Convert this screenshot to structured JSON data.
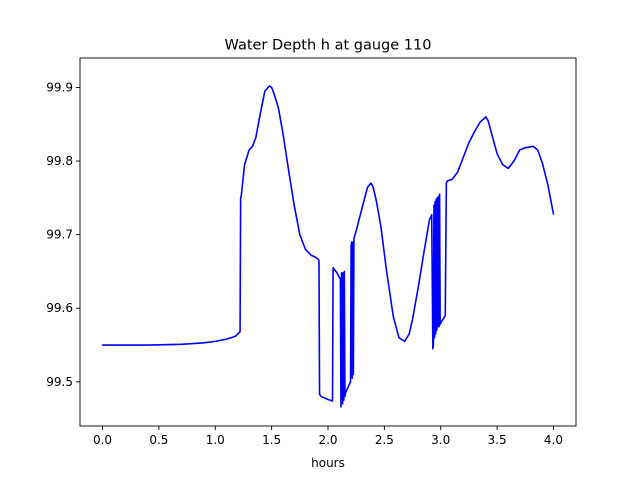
{
  "chart_data": {
    "type": "line",
    "title": "Water Depth h at gauge 110",
    "xlabel": "hours",
    "ylabel": "",
    "xlim": [
      -0.2,
      4.2
    ],
    "ylim": [
      99.44,
      99.94
    ],
    "xticks": [
      0.0,
      0.5,
      1.0,
      1.5,
      2.0,
      2.5,
      3.0,
      3.5,
      4.0
    ],
    "xtick_labels": [
      "0.0",
      "0.5",
      "1.0",
      "1.5",
      "2.0",
      "2.5",
      "3.0",
      "3.5",
      "4.0"
    ],
    "yticks": [
      99.5,
      99.6,
      99.7,
      99.8,
      99.9
    ],
    "ytick_labels": [
      "99.5",
      "99.6",
      "99.7",
      "99.8",
      "99.9"
    ],
    "grid": false,
    "line_color": "#0000ff",
    "series": [
      {
        "name": "",
        "x": [
          0.0,
          0.4,
          0.7,
          0.9,
          1.0,
          1.1,
          1.18,
          1.22,
          1.225,
          1.23,
          1.26,
          1.3,
          1.33,
          1.36,
          1.4,
          1.44,
          1.48,
          1.5,
          1.52,
          1.56,
          1.6,
          1.65,
          1.7,
          1.75,
          1.8,
          1.85,
          1.88,
          1.91,
          1.92,
          1.925,
          1.94,
          2.0,
          2.04,
          2.045,
          2.06,
          2.08,
          2.1,
          2.11,
          2.115,
          2.12,
          2.125,
          2.13,
          2.135,
          2.14,
          2.145,
          2.15,
          2.155,
          2.17,
          2.2,
          2.205,
          2.21,
          2.215,
          2.22,
          2.225,
          2.23,
          2.25,
          2.3,
          2.35,
          2.38,
          2.4,
          2.43,
          2.47,
          2.52,
          2.58,
          2.63,
          2.68,
          2.72,
          2.75,
          2.8,
          2.85,
          2.9,
          2.92,
          2.93,
          2.935,
          2.94,
          2.945,
          2.95,
          2.955,
          2.96,
          2.965,
          2.97,
          2.975,
          2.98,
          2.985,
          2.99,
          2.995,
          3.0,
          3.02,
          3.04,
          3.05,
          3.055,
          3.06,
          3.1,
          3.15,
          3.2,
          3.25,
          3.3,
          3.35,
          3.4,
          3.42,
          3.45,
          3.5,
          3.55,
          3.6,
          3.65,
          3.7,
          3.75,
          3.82,
          3.86,
          3.9,
          3.95,
          4.0
        ],
        "y": [
          99.55,
          99.55,
          99.551,
          99.553,
          99.555,
          99.558,
          99.562,
          99.568,
          99.75,
          99.752,
          99.795,
          99.815,
          99.82,
          99.832,
          99.865,
          99.895,
          99.902,
          99.9,
          99.892,
          99.872,
          99.838,
          99.788,
          99.74,
          99.7,
          99.68,
          99.672,
          99.67,
          99.667,
          99.665,
          99.483,
          99.48,
          99.476,
          99.474,
          99.655,
          99.652,
          99.648,
          99.642,
          99.64,
          99.466,
          99.648,
          99.648,
          99.47,
          99.648,
          99.475,
          99.65,
          99.48,
          99.485,
          99.49,
          99.5,
          99.685,
          99.69,
          99.505,
          99.69,
          99.51,
          99.695,
          99.705,
          99.735,
          99.764,
          99.77,
          99.765,
          99.745,
          99.71,
          99.65,
          99.588,
          99.56,
          99.555,
          99.565,
          99.585,
          99.628,
          99.675,
          99.72,
          99.727,
          99.545,
          99.55,
          99.74,
          99.56,
          99.745,
          99.565,
          99.748,
          99.57,
          99.75,
          99.575,
          99.752,
          99.575,
          99.755,
          99.578,
          99.58,
          99.585,
          99.59,
          99.77,
          99.772,
          99.773,
          99.775,
          99.785,
          99.805,
          99.825,
          99.84,
          99.853,
          99.86,
          99.855,
          99.838,
          99.81,
          99.795,
          99.79,
          99.8,
          99.815,
          99.818,
          99.82,
          99.815,
          99.798,
          99.768,
          99.728
        ]
      }
    ]
  }
}
